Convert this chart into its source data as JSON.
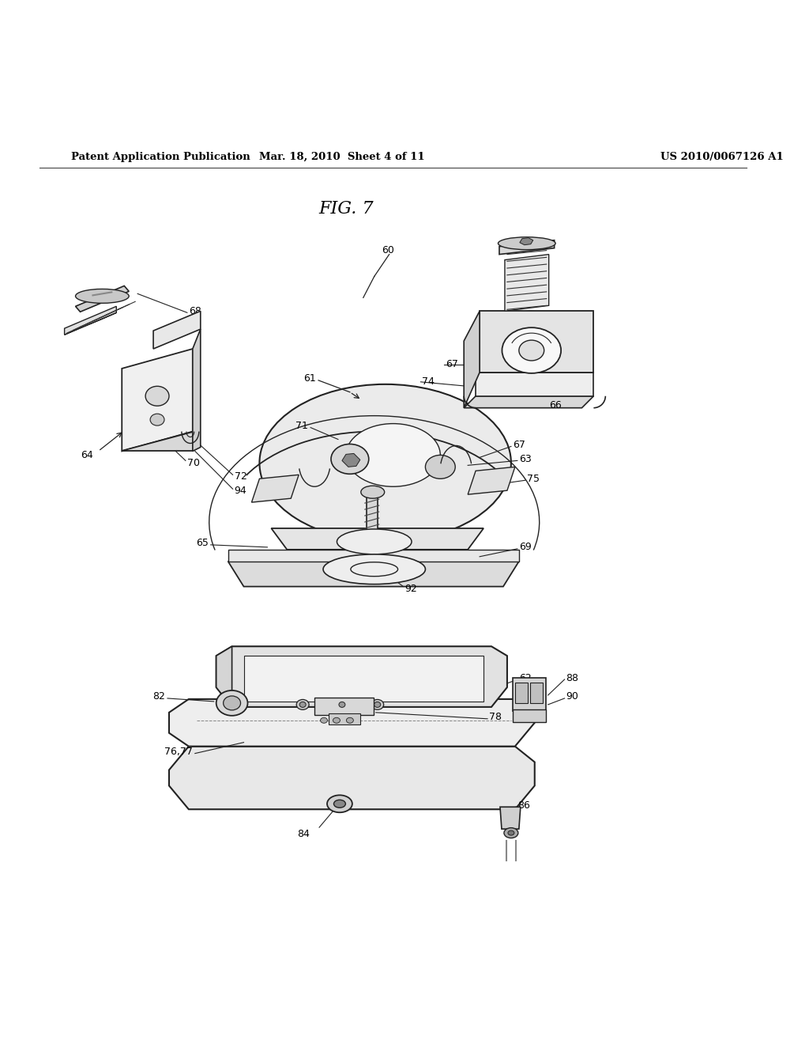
{
  "bg_color": "#ffffff",
  "header_left": "Patent Application Publication",
  "header_center": "Mar. 18, 2010  Sheet 4 of 11",
  "header_right": "US 2010/0067126 A1",
  "fig_label": "FIG. 7"
}
